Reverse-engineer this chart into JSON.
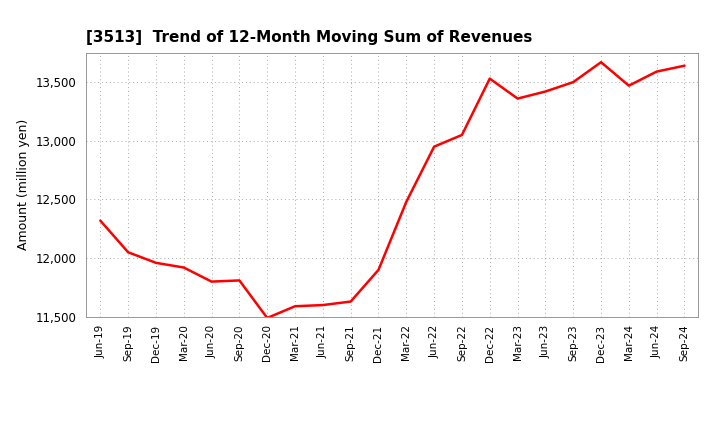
{
  "title": "[3513]  Trend of 12-Month Moving Sum of Revenues",
  "ylabel": "Amount (million yen)",
  "line_color": "#ff0000",
  "background_color": "#ffffff",
  "plot_bg_color": "#ffffff",
  "grid_color": "#aaaaaa",
  "ylim": [
    11500,
    13750
  ],
  "yticks": [
    11500,
    12000,
    12500,
    13000,
    13500
  ],
  "x_labels": [
    "Jun-19",
    "Sep-19",
    "Dec-19",
    "Mar-20",
    "Jun-20",
    "Sep-20",
    "Dec-20",
    "Mar-21",
    "Jun-21",
    "Sep-21",
    "Dec-21",
    "Mar-22",
    "Jun-22",
    "Sep-22",
    "Dec-22",
    "Mar-23",
    "Jun-23",
    "Sep-23",
    "Dec-23",
    "Mar-24",
    "Jun-24",
    "Sep-24"
  ],
  "values": [
    12320,
    12050,
    11960,
    11920,
    11800,
    11810,
    11490,
    11590,
    11600,
    11630,
    11900,
    12480,
    12950,
    13050,
    13530,
    13360,
    13420,
    13500,
    13670,
    13470,
    13590,
    13640
  ]
}
